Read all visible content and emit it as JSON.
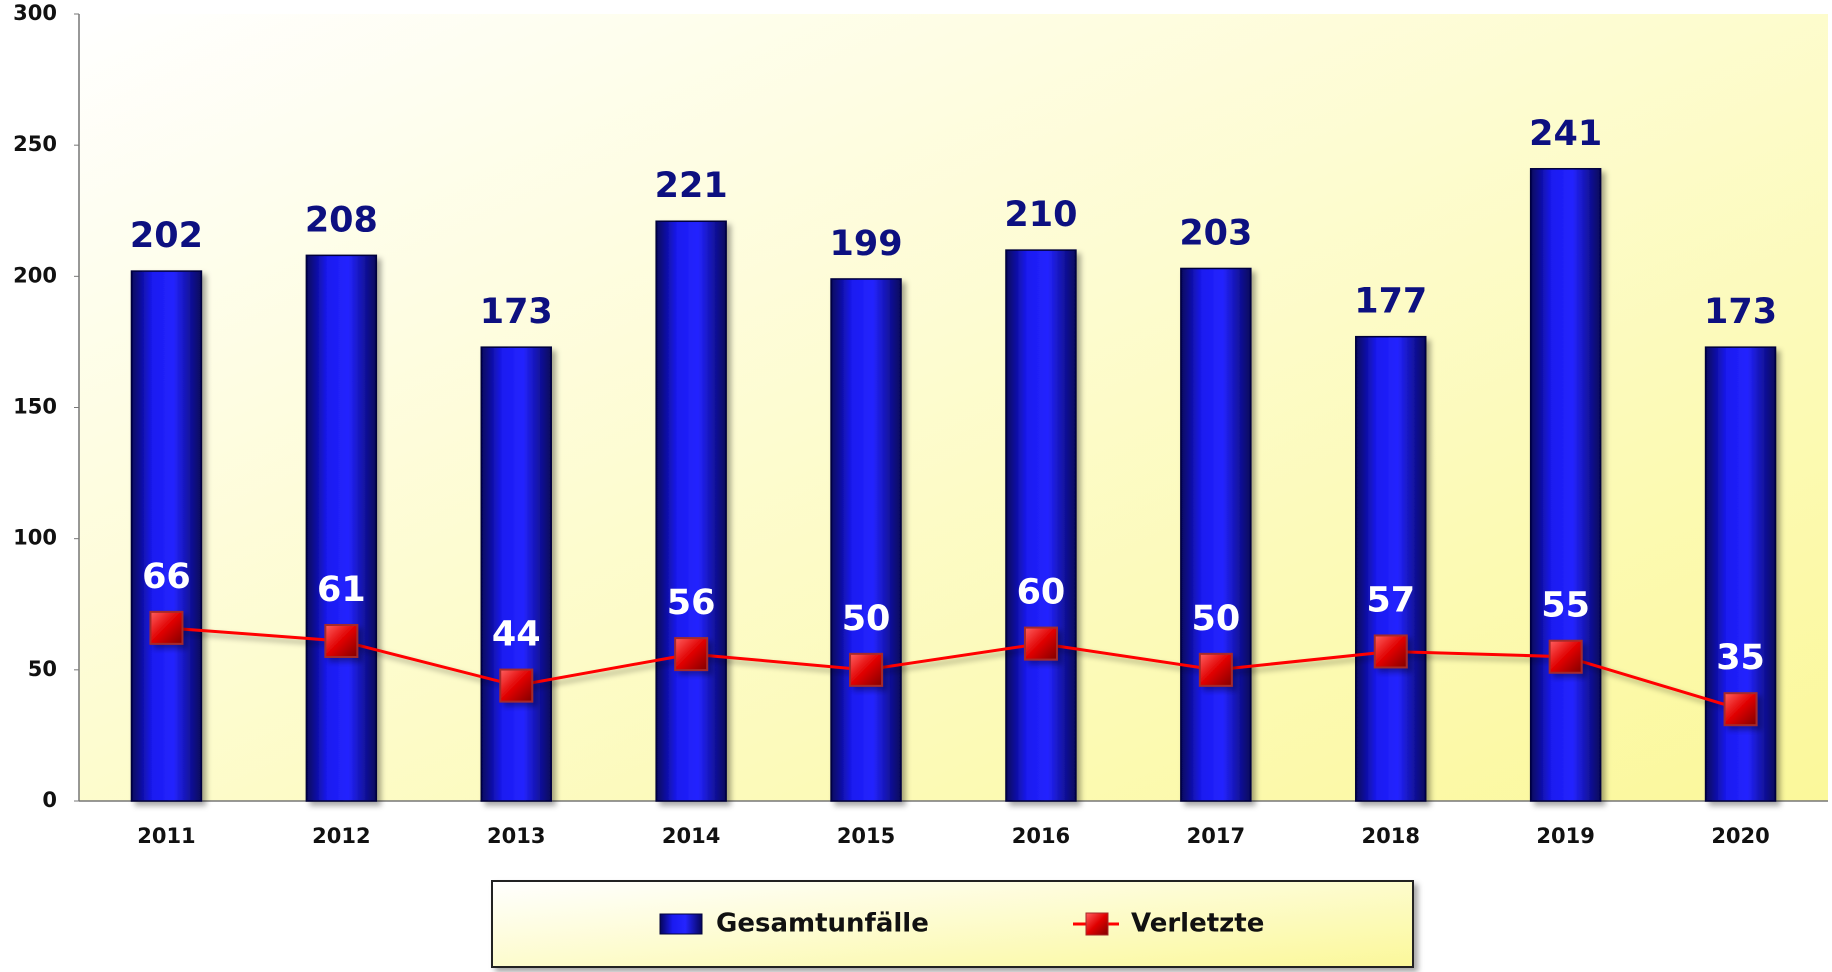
{
  "chart_data": {
    "type": "bar",
    "categories": [
      "2011",
      "2012",
      "2013",
      "2014",
      "2015",
      "2016",
      "2017",
      "2018",
      "2019",
      "2020"
    ],
    "series": [
      {
        "name": "Gesamtunfälle",
        "type": "bar",
        "color": "#1414e0",
        "values": [
          202,
          208,
          173,
          221,
          199,
          210,
          203,
          177,
          241,
          173
        ]
      },
      {
        "name": "Verletzte",
        "type": "line",
        "color": "#ff0000",
        "values": [
          66,
          61,
          44,
          56,
          50,
          60,
          50,
          57,
          55,
          35
        ]
      }
    ],
    "ylim": [
      0,
      300
    ],
    "yticks": [
      0,
      50,
      100,
      150,
      200,
      250,
      300
    ],
    "grid": false,
    "legend": "bottom"
  }
}
